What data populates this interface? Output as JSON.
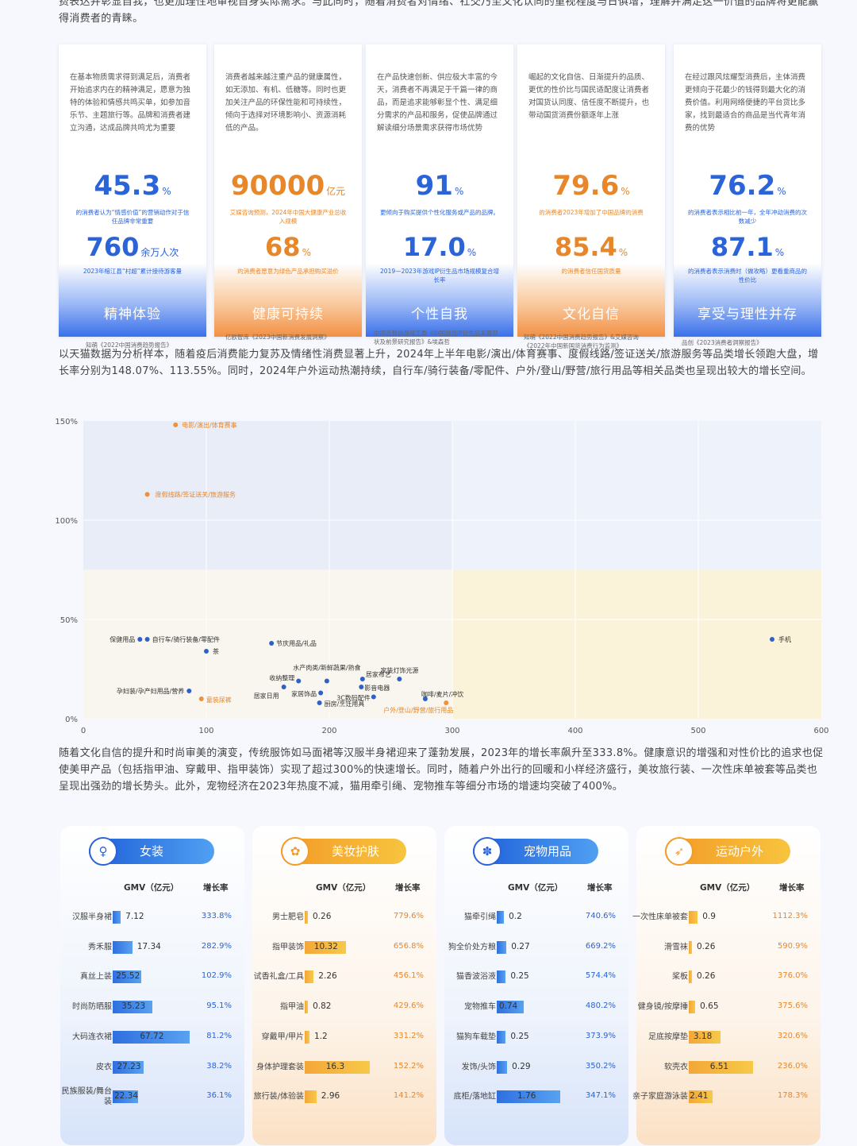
{
  "intro_text": "费表达并彰显自我，也更加理性地审视自身实际需求。与此同时，随着消费者对情绪、社交乃至文化认同的重视程度与日俱增，理解并满足这一价值的品牌将更能赢得消费者的青睐。",
  "cards": [
    {
      "text": "在基本物质需求得到满足后，消费者开始追求内在的精神满足，愿意为独特的体验和情感共鸣买单，如参加音乐节、主题旅行等。品牌和消费者建立沟通，达成品牌共鸣尤为重要",
      "stat1": "45.3",
      "unit1": "%",
      "cap1": "的消费者认为“情感价值”的营销动作对于信任品牌非常重要",
      "stat2": "760",
      "unit2": "余万人次",
      "cap2": "2023年榕江县“村超”累计接待游客量",
      "tag": "精神体验",
      "source": "知萌《2022中国消费趋势报告》"
    },
    {
      "text": "消费者越来越注重产品的健康属性，如无添加、有机、低糖等。同时也更加关注产品的环保性能和可持续性，倾向于选择对环境影响小、资源消耗低的产品。",
      "stat1": "90000",
      "unit1": "亿元",
      "cap1": "艾媒咨询预测，2024年中国大健康产业总收入规模",
      "stat2": "68",
      "unit2": "%",
      "cap2": "的消费者愿意为绿色产品承担购买溢价",
      "tag": "健康可持续",
      "source": "亿欧智库《2023中国新消费发展洞察》"
    },
    {
      "text": "在产品快速创新、供应极大丰富的今天，消费者不再满足于千篇一律的商品，而是追求能够彰显个性、满足细分需求的产品和服务，促使品牌通过解读细分场景需求获得市场优势",
      "stat1": "91",
      "unit1": "%",
      "cap1": "更倾向于购买提供个性化服务或产品的品牌。",
      "stat2": "17.0",
      "unit2": "%",
      "cap2": "2019—2023年游戏IP衍生品市场规模复合增长率",
      "tag": "个性自我",
      "source": "中国音数协游戏工委《中国游戏IP衍生品发展现状及前景研究报告》&埃森哲"
    },
    {
      "text": "崛起的文化自信、日渐提升的品质、更优的性价比与国民适配度让消费者对国货认同度、信任度不断提升，也带动国货消费份额逐年上涨",
      "stat1": "79.6",
      "unit1": "%",
      "cap1": "的消费者2023年增加了中国品牌的消费",
      "stat2": "85.4",
      "unit2": "%",
      "cap2": "的消费者信任国货质量",
      "tag": "文化自信",
      "source": "知萌《2022中国消费趋势报告》&艾媒咨询《2022年中国新国货消费行为监测》"
    },
    {
      "text": "在经过跟风炫耀型消费后，主体消费更倾向于花最少的钱得到最大化的消费价值。利用网络便捷的平台货比多家，找到最适合的商品是当代青年消费的优势",
      "stat1": "76.2",
      "unit1": "%",
      "cap1": "的消费者表示相比前一年，全年冲动消费的次数减少",
      "stat2": "87.1",
      "unit2": "%",
      "cap2": "的消费者表示消费时（做攻略）更看重商品的性价比",
      "tag": "享受与理性并存",
      "source": "品创《2023消费者洞察报告》"
    }
  ],
  "para2": "以天猫数据为分析样本，随着疫后消费能力复苏及情绪性消费显著上升，2024年上半年电影/演出/体育赛事、度假线路/签证送关/旅游服务等品类增长领跑大盘，增长率分别为148.07%、113.55%。同时，2024年户外运动热潮持续，自行车/骑行装备/零配件、户外/登山/野营/旅行用品等相关品类也呈现出较大的增长空间。",
  "chart_data": {
    "type": "scatter",
    "xlim": [
      0,
      600
    ],
    "ylim": [
      0,
      150
    ],
    "x_ticks": [
      "0",
      "100",
      "200",
      "300",
      "400",
      "500",
      "600"
    ],
    "y_ticks": [
      "0%",
      "50%",
      "100%",
      "150%"
    ],
    "points": [
      {
        "label": "电影/演出/体育赛事",
        "x": 75,
        "y": 148,
        "color": "#f0903a"
      },
      {
        "label": "度假线路/签证送关/旅游服务",
        "x": 52,
        "y": 113,
        "color": "#f0903a"
      },
      {
        "label": "保健用品",
        "x": 46,
        "y": 40,
        "color": "#2f5fc8"
      },
      {
        "label": "自行车/骑行装备/零配件",
        "x": 52,
        "y": 40,
        "color": "#2f5fc8"
      },
      {
        "label": "茶",
        "x": 100,
        "y": 34,
        "color": "#2f5fc8"
      },
      {
        "label": "节庆用品/礼品",
        "x": 153,
        "y": 38,
        "color": "#2f5fc8"
      },
      {
        "label": "孕妇装/孕产妇用品/营养",
        "x": 86,
        "y": 14,
        "color": "#2f5fc8"
      },
      {
        "label": "童装尿裤",
        "x": 96,
        "y": 10,
        "color": "#f0903a"
      },
      {
        "label": "收纳整理",
        "x": 175,
        "y": 19,
        "color": "#2f5fc8"
      },
      {
        "label": "居家日用",
        "x": 163,
        "y": 16,
        "color": "#2f5fc8"
      },
      {
        "label": "水产肉类/新鲜蔬果/熟食",
        "x": 198,
        "y": 19,
        "color": "#2f5fc8"
      },
      {
        "label": "家居饰品",
        "x": 193,
        "y": 13,
        "color": "#2f5fc8"
      },
      {
        "label": "厨房/烹饪用具",
        "x": 192,
        "y": 8,
        "color": "#2f5fc8"
      },
      {
        "label": "居家布艺",
        "x": 227,
        "y": 20,
        "color": "#2f5fc8"
      },
      {
        "label": "影音电器",
        "x": 226,
        "y": 16,
        "color": "#2f5fc8"
      },
      {
        "label": "3C数码配件",
        "x": 236,
        "y": 11,
        "color": "#2f5fc8"
      },
      {
        "label": "家装灯饰光源",
        "x": 257,
        "y": 20,
        "color": "#2f5fc8"
      },
      {
        "label": "咖啡/麦片/冲饮",
        "x": 278,
        "y": 10,
        "color": "#2f5fc8"
      },
      {
        "label": "户外/登山/野营/旅行用品",
        "x": 295,
        "y": 8,
        "color": "#f0903a"
      },
      {
        "label": "手机",
        "x": 560,
        "y": 40,
        "color": "#2f5fc8"
      }
    ]
  },
  "para3": "随着文化自信的提升和时尚审美的演变，传统服饰如马面裙等汉服半身裙迎来了蓬勃发展，2023年的增长率飙升至333.8%。健康意识的增强和对性价比的追求也促使美甲产品（包括指甲油、穿戴甲、指甲装饰）实现了超过300%的快速增长。同时，随着户外出行的回暖和小样经济盛行，美妆旅行装、一次性床单被套等品类也呈现出强劲的增长势头。此外，宠物经济在2023年热度不减，猫用牵引绳、宠物推车等细分市场的增速均突破了400%。",
  "table_headers": {
    "gmv": "GMV（亿元）",
    "rate": "增长率"
  },
  "panels": [
    {
      "title": "女装",
      "icon": "dress-icon",
      "glyph": "♀",
      "theme": "blue",
      "max": 70,
      "rows": [
        {
          "name": "汉服半身裙",
          "gmv": "7.12",
          "v": 7.12,
          "rate": "333.8%"
        },
        {
          "name": "秀禾服",
          "gmv": "17.34",
          "v": 17.34,
          "rate": "282.9%"
        },
        {
          "name": "真丝上装",
          "gmv": "25.52",
          "v": 25.52,
          "rate": "102.9%"
        },
        {
          "name": "时尚防晒服",
          "gmv": "35.23",
          "v": 35.23,
          "rate": "95.1%"
        },
        {
          "name": "大码连衣裙",
          "gmv": "67.72",
          "v": 67.72,
          "rate": "81.2%"
        },
        {
          "name": "皮衣",
          "gmv": "27.23",
          "v": 27.23,
          "rate": "38.2%"
        },
        {
          "name": "民族服装/舞台装",
          "gmv": "22.34",
          "v": 22.34,
          "rate": "36.1%"
        }
      ]
    },
    {
      "title": "美妆护肤",
      "icon": "cosmetics-icon",
      "glyph": "✿",
      "theme": "orange",
      "max": 20,
      "rows": [
        {
          "name": "男士肥皂",
          "gmv": "0.26",
          "v": 0.26,
          "rate": "779.6%"
        },
        {
          "name": "指甲装饰",
          "gmv": "10.32",
          "v": 10.32,
          "rate": "656.8%"
        },
        {
          "name": "试香礼盒/工具",
          "gmv": "2.26",
          "v": 2.26,
          "rate": "456.1%"
        },
        {
          "name": "指甲油",
          "gmv": "0.82",
          "v": 0.82,
          "rate": "429.6%"
        },
        {
          "name": "穿戴甲/甲片",
          "gmv": "1.2",
          "v": 1.2,
          "rate": "331.2%"
        },
        {
          "name": "身体护理套装",
          "gmv": "16.3",
          "v": 16.3,
          "rate": "152.2%"
        },
        {
          "name": "旅行装/体验装",
          "gmv": "2.96",
          "v": 2.96,
          "rate": "141.2%"
        }
      ]
    },
    {
      "title": "宠物用品",
      "icon": "paw-icon",
      "glyph": "✽",
      "theme": "blue",
      "max": 2.2,
      "rows": [
        {
          "name": "猫牵引绳",
          "gmv": "0.2",
          "v": 0.2,
          "rate": "740.6%"
        },
        {
          "name": "狗全价处方粮",
          "gmv": "0.27",
          "v": 0.27,
          "rate": "669.2%"
        },
        {
          "name": "猫香波浴液",
          "gmv": "0.25",
          "v": 0.25,
          "rate": "574.4%"
        },
        {
          "name": "宠物推车",
          "gmv": "0.74",
          "v": 0.74,
          "rate": "480.2%"
        },
        {
          "name": "猫狗车载垫",
          "gmv": "0.25",
          "v": 0.25,
          "rate": "373.9%"
        },
        {
          "name": "发饰/头饰",
          "gmv": "0.29",
          "v": 0.29,
          "rate": "350.2%"
        },
        {
          "name": "底柜/落地缸",
          "gmv": "1.76",
          "v": 1.76,
          "rate": "347.1%"
        }
      ]
    },
    {
      "title": "运动户外",
      "icon": "sport-icon",
      "glyph": "➶",
      "theme": "orange",
      "max": 8,
      "rows": [
        {
          "name": "一次性床单被套",
          "gmv": "0.9",
          "v": 0.9,
          "rate": "1112.3%"
        },
        {
          "name": "滑雪袜",
          "gmv": "0.26",
          "v": 0.26,
          "rate": "590.9%"
        },
        {
          "name": "桨板",
          "gmv": "0.26",
          "v": 0.26,
          "rate": "376.0%"
        },
        {
          "name": "健身镜/按摩捶",
          "gmv": "0.65",
          "v": 0.65,
          "rate": "375.6%"
        },
        {
          "name": "足底按摩垫",
          "gmv": "3.18",
          "v": 3.18,
          "rate": "320.6%"
        },
        {
          "name": "软壳衣",
          "gmv": "6.51",
          "v": 6.51,
          "rate": "236.0%"
        },
        {
          "name": "亲子家庭游泳装",
          "gmv": "2.41",
          "v": 2.41,
          "rate": "178.3%"
        }
      ]
    }
  ]
}
